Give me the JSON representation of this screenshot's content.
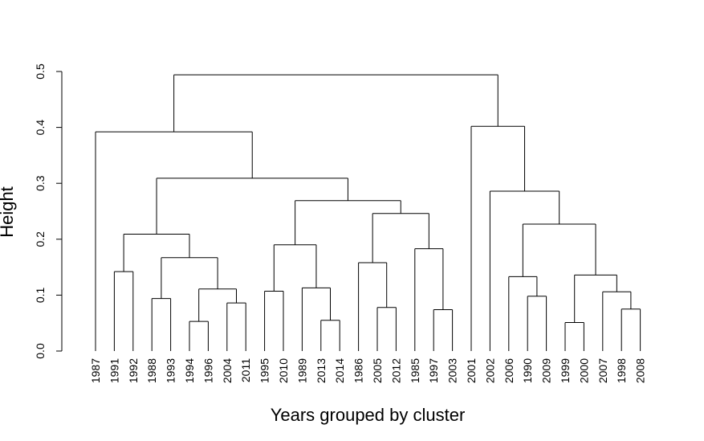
{
  "chart_data": {
    "type": "dendrogram",
    "title": "",
    "xlabel": "Years grouped by cluster",
    "ylabel": "Height",
    "ylim": [
      0,
      0.5
    ],
    "yticks": [
      0.0,
      0.1,
      0.2,
      0.3,
      0.4,
      0.5
    ],
    "ytick_labels": [
      "0.0",
      "0.1",
      "0.2",
      "0.3",
      "0.4",
      "0.5"
    ],
    "leaves": [
      "1987",
      "1991",
      "1992",
      "1988",
      "1993",
      "1994",
      "1996",
      "2004",
      "2011",
      "1995",
      "2010",
      "1989",
      "2013",
      "2014",
      "1986",
      "2005",
      "2012",
      "1985",
      "1997",
      "2003",
      "2001",
      "2002",
      "2006",
      "1990",
      "2009",
      "1999",
      "2000",
      "2007",
      "1998",
      "2008"
    ],
    "merges": [
      {
        "left": "1991",
        "right": "1992",
        "height": 0.142
      },
      {
        "left": "1988",
        "right": "1993",
        "height": 0.094
      },
      {
        "left": "1994",
        "right": "1996",
        "height": 0.053
      },
      {
        "left": "2004",
        "right": "2011",
        "height": 0.086
      },
      {
        "left": "1995",
        "right": "2010",
        "height": 0.107
      },
      {
        "left": "2013",
        "right": "2014",
        "height": 0.055
      },
      {
        "left": "2005",
        "right": "2012",
        "height": 0.078
      },
      {
        "left": "1997",
        "right": "2003",
        "height": 0.074
      },
      {
        "left": "2009",
        "right": "1990",
        "height": 0.098
      },
      {
        "left": "1999",
        "right": "2000",
        "height": 0.051
      },
      {
        "left": "1998",
        "right": "2008",
        "height": 0.075
      },
      {
        "left": "1994+1996",
        "right": "2004+2011",
        "height": 0.111
      },
      {
        "left": "1989",
        "right": "2013+2014",
        "height": 0.113
      },
      {
        "left": "1986",
        "right": "2005+2012",
        "height": 0.158
      },
      {
        "left": "1985",
        "right": "1997+2003",
        "height": 0.183
      },
      {
        "left": "2006",
        "right": "1990+2009",
        "height": 0.133
      },
      {
        "left": "2007",
        "right": "1998+2008",
        "height": 0.106
      },
      {
        "left": "1988+1993",
        "right": "1994..2011",
        "height": 0.167
      },
      {
        "left": "1995+2010",
        "right": "1989..2014",
        "height": 0.19
      },
      {
        "left": "1999+2000",
        "right": "2007..2008",
        "height": 0.136
      },
      {
        "left": "1991+1992",
        "right": "1988..2011",
        "height": 0.209
      },
      {
        "left": "1986..2012",
        "right": "1985..2003",
        "height": 0.246
      },
      {
        "left": "2006..2009",
        "right": "1999..2008",
        "height": 0.227
      },
      {
        "left": "1995..2014",
        "right": "1986..2003",
        "height": 0.269
      },
      {
        "left": "2002",
        "right": "2006..2008",
        "height": 0.286
      },
      {
        "left": "1991..2011",
        "right": "1995..2003",
        "height": 0.309
      },
      {
        "left": "2001",
        "right": "2002..2008",
        "height": 0.402
      },
      {
        "left": "1987",
        "right": "1991..2003",
        "height": 0.392
      },
      {
        "left": "1987..2003",
        "right": "2001..2008",
        "height": 0.494
      }
    ]
  }
}
